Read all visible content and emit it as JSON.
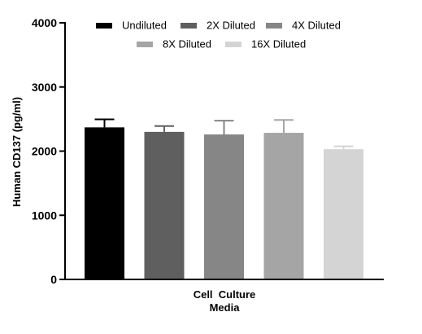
{
  "chart_data": {
    "type": "bar",
    "ylabel": "Human CD137 (pg/ml)",
    "xlabel_lines": [
      "Cell  Culture",
      "Media"
    ],
    "ylim": [
      0,
      4000
    ],
    "yticks": [
      0,
      1000,
      2000,
      3000,
      4000
    ],
    "yticks_labels": [
      "0",
      "1000",
      "2000",
      "3000",
      "4000"
    ],
    "grid": false,
    "legend_position": "top",
    "series": [
      {
        "name": "Undiluted",
        "value": 2370,
        "error": 125,
        "color": "#000000"
      },
      {
        "name": "2X Diluted",
        "value": 2300,
        "error": 90,
        "color": "#5f5f5f"
      },
      {
        "name": "4X Diluted",
        "value": 2260,
        "error": 215,
        "color": "#868686"
      },
      {
        "name": "8X Diluted",
        "value": 2285,
        "error": 200,
        "color": "#a5a5a5"
      },
      {
        "name": "16X Diluted",
        "value": 2030,
        "error": 45,
        "color": "#d4d4d4"
      }
    ]
  }
}
